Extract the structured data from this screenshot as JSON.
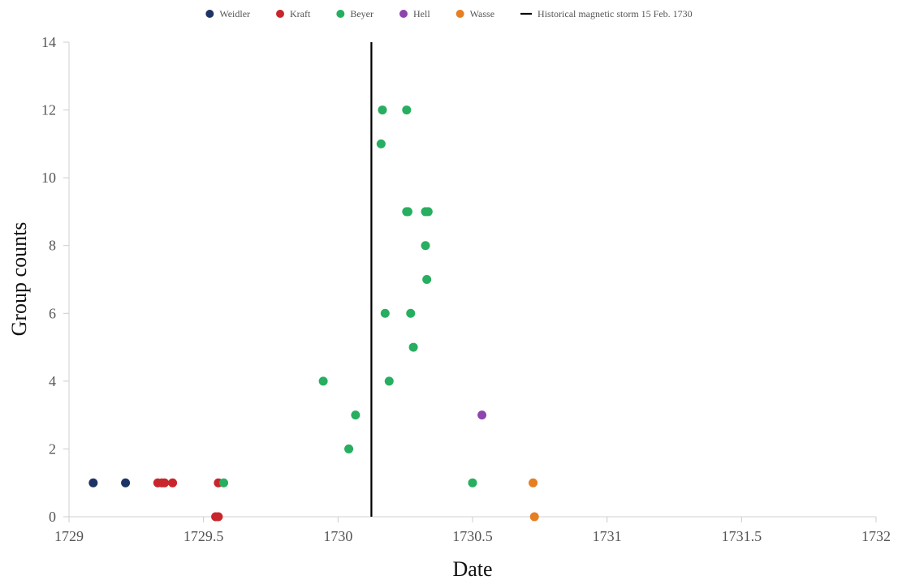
{
  "chart_data": {
    "type": "scatter",
    "xlabel": "Date",
    "ylabel": "Group counts",
    "xlim": [
      1729,
      1732
    ],
    "ylim": [
      0,
      14
    ],
    "xticks": [
      1729,
      1729.5,
      1730,
      1730.5,
      1731,
      1731.5,
      1732
    ],
    "xtick_labels": [
      "1729",
      "1729.5",
      "1730",
      "1730.5",
      "1731",
      "1731.5",
      "1732"
    ],
    "yticks": [
      0,
      2,
      4,
      6,
      8,
      10,
      12,
      14
    ],
    "ytick_labels": [
      "0",
      "2",
      "4",
      "6",
      "8",
      "10",
      "12",
      "14"
    ],
    "grid": false,
    "legend_position": "top-center",
    "series": [
      {
        "name": "Weidler",
        "color": "#1f3466",
        "points": [
          [
            1729.09,
            1
          ],
          [
            1729.21,
            1
          ]
        ]
      },
      {
        "name": "Kraft",
        "color": "#c8262c",
        "points": [
          [
            1729.33,
            1
          ],
          [
            1729.345,
            1
          ],
          [
            1729.355,
            1
          ],
          [
            1729.385,
            1
          ],
          [
            1729.555,
            1
          ],
          [
            1729.545,
            0
          ],
          [
            1729.555,
            0
          ]
        ]
      },
      {
        "name": "Beyer",
        "color": "#27ae60",
        "points": [
          [
            1729.575,
            1
          ],
          [
            1729.945,
            4
          ],
          [
            1730.04,
            2
          ],
          [
            1730.065,
            3
          ],
          [
            1730.16,
            11
          ],
          [
            1730.165,
            12
          ],
          [
            1730.175,
            6
          ],
          [
            1730.19,
            4
          ],
          [
            1730.255,
            9
          ],
          [
            1730.26,
            9
          ],
          [
            1730.255,
            12
          ],
          [
            1730.27,
            6
          ],
          [
            1730.28,
            5
          ],
          [
            1730.325,
            9
          ],
          [
            1730.335,
            9
          ],
          [
            1730.325,
            8
          ],
          [
            1730.33,
            7
          ],
          [
            1730.5,
            1
          ]
        ]
      },
      {
        "name": "Hell",
        "color": "#8e44ad",
        "points": [
          [
            1730.535,
            3
          ]
        ]
      },
      {
        "name": "Wasse",
        "color": "#e67e22",
        "points": [
          [
            1730.725,
            1
          ],
          [
            1730.73,
            0
          ]
        ]
      }
    ],
    "vline": {
      "x": 1730.124,
      "label": "Historical magnetic storm 15 Feb. 1730",
      "color": "#000000"
    }
  }
}
